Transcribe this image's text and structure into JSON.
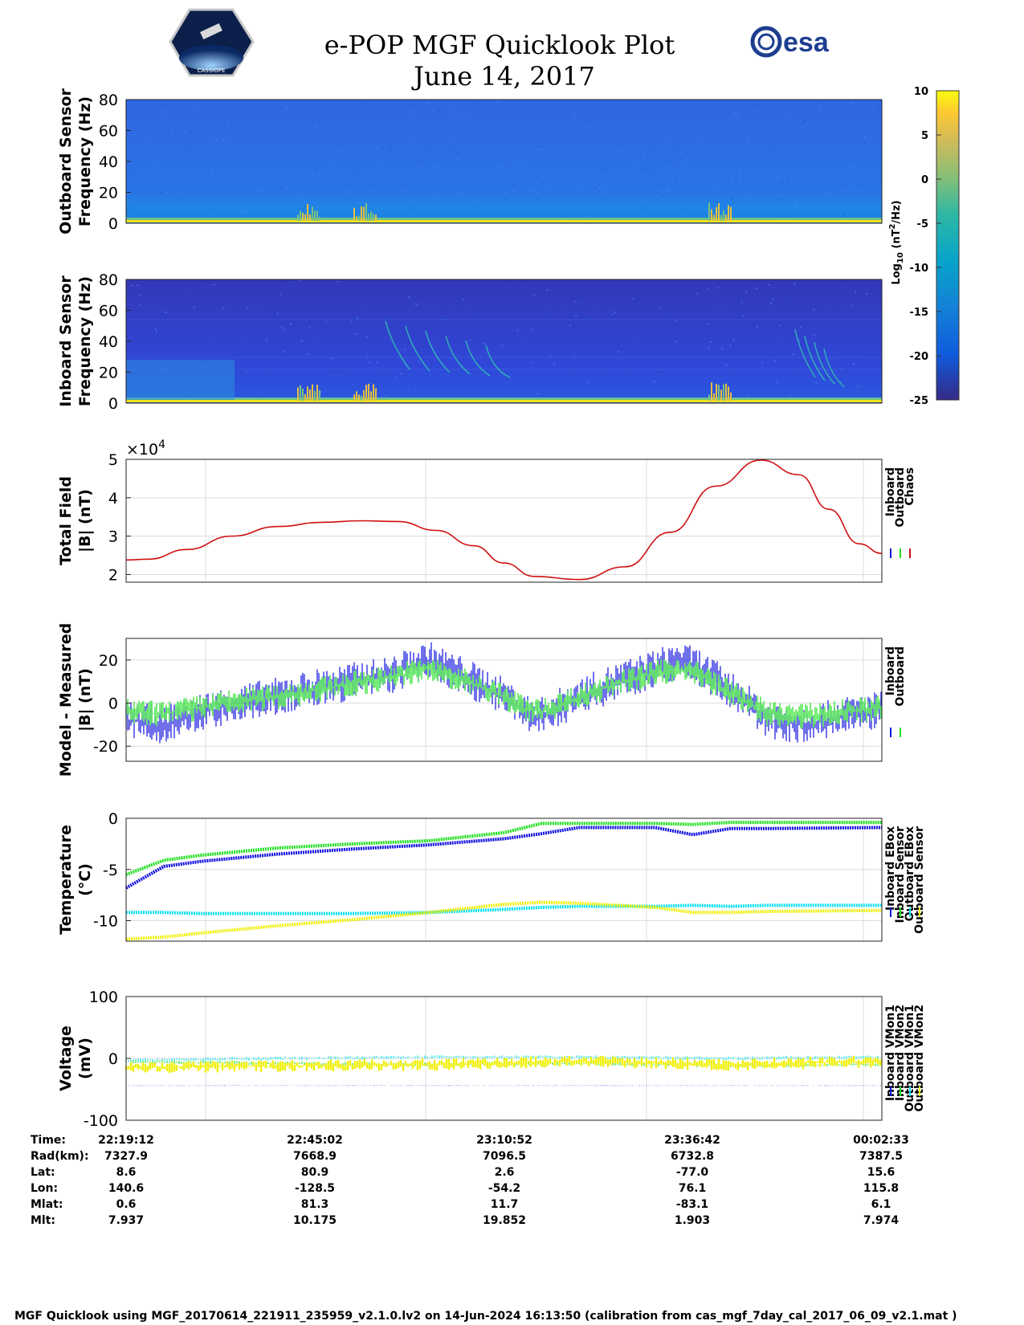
{
  "header": {
    "title": "e-POP MGF Quicklook Plot",
    "date": "June 14, 2017",
    "mission_logo_text": "CASSIOPE",
    "agency_logo_text": "esa"
  },
  "colorbar": {
    "label": "Log10 (nT^2/Hz)",
    "ticks": [
      "10",
      "5",
      "0",
      "-5",
      "-10",
      "-15",
      "-20",
      "-25"
    ],
    "range": [
      -25,
      10
    ]
  },
  "chart_data": [
    {
      "type": "heatmap",
      "ylabel_line1": "Outboard Sensor",
      "ylabel_line2": "Frequency (Hz)",
      "ylim": [
        0,
        80
      ],
      "yticks": [
        "0",
        "20",
        "40",
        "60",
        "80"
      ]
    },
    {
      "type": "heatmap",
      "ylabel_line1": "Inboard Sensor",
      "ylabel_line2": "Frequency (Hz)",
      "ylim": [
        0,
        80
      ],
      "yticks": [
        "0",
        "20",
        "40",
        "60",
        "80"
      ]
    },
    {
      "type": "line",
      "ylabel_line1": "Total Field",
      "ylabel_line2": "|B| (nT)",
      "ylim": [
        1.8,
        5.0
      ],
      "yticks": [
        "2",
        "3",
        "4",
        "5"
      ],
      "exponent_label": "×10",
      "exponent_power": "4",
      "legend": [
        "Inboard",
        "Outboard",
        "Chaos"
      ],
      "legend_colors": [
        "#1010e0",
        "#20e020",
        "#d01010"
      ],
      "x": [
        0,
        0.03,
        0.08,
        0.14,
        0.2,
        0.26,
        0.31,
        0.36,
        0.41,
        0.46,
        0.5,
        0.54,
        0.6,
        0.66,
        0.72,
        0.78,
        0.84,
        0.89,
        0.93,
        0.97,
        1.0
      ],
      "series": [
        {
          "name": "Chaos",
          "values": [
            2.38,
            2.4,
            2.65,
            3.0,
            3.25,
            3.36,
            3.4,
            3.38,
            3.15,
            2.75,
            2.3,
            1.95,
            1.87,
            2.2,
            3.1,
            4.3,
            4.98,
            4.6,
            3.7,
            2.8,
            2.55
          ]
        }
      ]
    },
    {
      "type": "line",
      "ylabel_line1": "Model - Measured",
      "ylabel_line2": "|B| (nT)",
      "ylim": [
        -27,
        30
      ],
      "yticks": [
        "-20",
        "0",
        "20"
      ],
      "legend": [
        "Inboard",
        "Outboard"
      ],
      "legend_colors": [
        "#1010e0",
        "#20e020"
      ],
      "x": [
        0,
        0.05,
        0.1,
        0.15,
        0.2,
        0.25,
        0.3,
        0.35,
        0.4,
        0.45,
        0.5,
        0.53,
        0.55,
        0.6,
        0.65,
        0.7,
        0.73,
        0.76,
        0.8,
        0.85,
        0.9,
        0.95,
        1.0
      ],
      "series": [
        {
          "name": "Inboard",
          "values": [
            -8,
            -10,
            -4,
            0,
            3,
            7,
            10,
            13,
            20,
            12,
            3,
            -5,
            -6,
            3,
            10,
            16,
            20,
            16,
            6,
            -8,
            -10,
            -6,
            -3
          ]
        },
        {
          "name": "Outboard",
          "values": [
            -4,
            -5,
            -2,
            1,
            3,
            6,
            9,
            12,
            16,
            10,
            3,
            -3,
            -4,
            3,
            9,
            14,
            16,
            13,
            5,
            -5,
            -6,
            -4,
            -2
          ]
        }
      ]
    },
    {
      "type": "line",
      "ylabel_line1": "Temperature",
      "ylabel_line2": "(°C)",
      "ylim": [
        -12,
        0
      ],
      "yticks": [
        "-10",
        "-5",
        "0"
      ],
      "legend": [
        "Inboard EBox",
        "Inboard Sensor",
        "Outboard EBox",
        "Outboard Sensor"
      ],
      "legend_colors": [
        "#1010e0",
        "#20e020",
        "#10e0f0",
        "#f0f010"
      ],
      "x": [
        0,
        0.05,
        0.1,
        0.2,
        0.3,
        0.4,
        0.5,
        0.55,
        0.6,
        0.7,
        0.75,
        0.8,
        0.85,
        1.0
      ],
      "series": [
        {
          "name": "Inboard EBox",
          "values": [
            -6.8,
            -4.7,
            -4.2,
            -3.5,
            -3.0,
            -2.6,
            -2.0,
            -1.5,
            -0.9,
            -0.9,
            -1.6,
            -1.0,
            -1.0,
            -0.9
          ]
        },
        {
          "name": "Inboard Sensor",
          "values": [
            -5.5,
            -4.1,
            -3.6,
            -2.9,
            -2.5,
            -2.2,
            -1.4,
            -0.5,
            -0.5,
            -0.5,
            -0.6,
            -0.4,
            -0.4,
            -0.4
          ]
        },
        {
          "name": "Outboard EBox",
          "values": [
            -9.2,
            -9.2,
            -9.3,
            -9.3,
            -9.3,
            -9.2,
            -8.9,
            -8.7,
            -8.6,
            -8.6,
            -8.5,
            -8.6,
            -8.5,
            -8.5
          ]
        },
        {
          "name": "Outboard Sensor",
          "values": [
            -11.8,
            -11.6,
            -11.2,
            -10.5,
            -9.9,
            -9.2,
            -8.4,
            -8.2,
            -8.3,
            -8.7,
            -9.2,
            -9.2,
            -9.1,
            -9.0
          ]
        }
      ]
    },
    {
      "type": "line",
      "ylabel_line1": "Voltage",
      "ylabel_line2": "(mV)",
      "ylim": [
        -100,
        100
      ],
      "yticks": [
        "-100",
        "0",
        "100"
      ],
      "legend": [
        "Inboard VMon1",
        "Inboard VMon2",
        "Outboard VMon1",
        "Outboard VMon2"
      ],
      "legend_colors": [
        "#1010e0",
        "#20e020",
        "#10e0f0",
        "#f0f010"
      ],
      "x": [
        0,
        0.2,
        0.4,
        0.6,
        0.8,
        1.0
      ],
      "series": [
        {
          "name": "Inboard VMon1",
          "values": [
            -44,
            -44,
            -44,
            -44,
            -44,
            -44
          ]
        },
        {
          "name": "Inboard VMon2",
          "values": [
            -5,
            -8,
            -10,
            -8,
            -12,
            -10
          ]
        },
        {
          "name": "Outboard VMon1",
          "values": [
            -3,
            0,
            2,
            2,
            0,
            2
          ]
        },
        {
          "name": "Outboard VMon2",
          "values": [
            -15,
            -12,
            -10,
            -5,
            -10,
            -5
          ]
        }
      ]
    }
  ],
  "table": {
    "row_labels": [
      "Time:",
      "Rad(km):",
      "Lat:",
      "Lon:",
      "Mlat:",
      "Mlt:"
    ],
    "columns": [
      [
        "22:19:12",
        "7327.9",
        "8.6",
        "140.6",
        "0.6",
        "7.937"
      ],
      [
        "22:45:02",
        "7668.9",
        "80.9",
        "-128.5",
        "81.3",
        "10.175"
      ],
      [
        "23:10:52",
        "7096.5",
        "2.6",
        "-54.2",
        "11.7",
        "19.852"
      ],
      [
        "23:36:42",
        "6732.8",
        "-77.0",
        "76.1",
        "-83.1",
        "1.903"
      ],
      [
        "00:02:33",
        "7387.5",
        "15.6",
        "115.8",
        "6.1",
        "7.974"
      ]
    ]
  },
  "footer": "MGF Quicklook using MGF_20170614_221911_235959_v2.1.0.lv2 on 14-Jun-2024 16:13:50 (calibration from cas_mgf_7day_cal_2017_06_09_v2.1.mat )"
}
